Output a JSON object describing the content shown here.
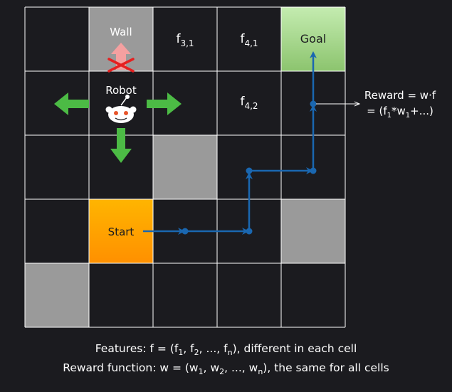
{
  "grid": {
    "rows": 5,
    "cols": 5,
    "wall_cells": [
      [
        0,
        1
      ],
      [
        2,
        2
      ],
      [
        3,
        4
      ],
      [
        4,
        0
      ]
    ],
    "start_cell": [
      3,
      1
    ],
    "goal_cell": [
      0,
      4
    ],
    "robot_cell": [
      1,
      1
    ]
  },
  "labels": {
    "wall": "Wall",
    "goal": "Goal",
    "start": "Start",
    "robot": "Robot"
  },
  "features": [
    {
      "cell": [
        0,
        2
      ],
      "base": "f",
      "sub": "3,1"
    },
    {
      "cell": [
        0,
        3
      ],
      "base": "f",
      "sub": "4,1"
    },
    {
      "cell": [
        1,
        3
      ],
      "base": "f",
      "sub": "4,2"
    }
  ],
  "path_nodes": [
    [
      3,
      2
    ],
    [
      3,
      3
    ],
    [
      2,
      3
    ],
    [
      2,
      4
    ],
    [
      1,
      4
    ],
    [
      0,
      4
    ]
  ],
  "reward_note": {
    "line1": "Reward = w·f",
    "line2_prefix": "= (f",
    "line2_sub1": "1",
    "line2_mid": "*w",
    "line2_sub2": "1",
    "line2_suffix": "+...)"
  },
  "caption": {
    "line1_a": "Features: f = (f",
    "line1_s1": "1",
    "line1_b": ", f",
    "line1_s2": "2",
    "line1_c": ", ..., f",
    "line1_s3": "n",
    "line1_d": "), different in each cell",
    "line2_a": "Reward function: w = (w",
    "line2_s1": "1",
    "line2_b": ", w",
    "line2_s2": "2",
    "line2_c": ", ..., w",
    "line2_s3": "n",
    "line2_d": "), the same for all cells"
  },
  "colors": {
    "background": "#1b1b1f",
    "grid_line": "#ffffff",
    "wall": "#9a9a9a",
    "start": "#ffa400",
    "goal": "#a8d88f",
    "path": "#1a67b0",
    "move_arrow": "#4cbb45",
    "blocked_arrow": "#f4a0a0",
    "cross": "#e52020"
  }
}
